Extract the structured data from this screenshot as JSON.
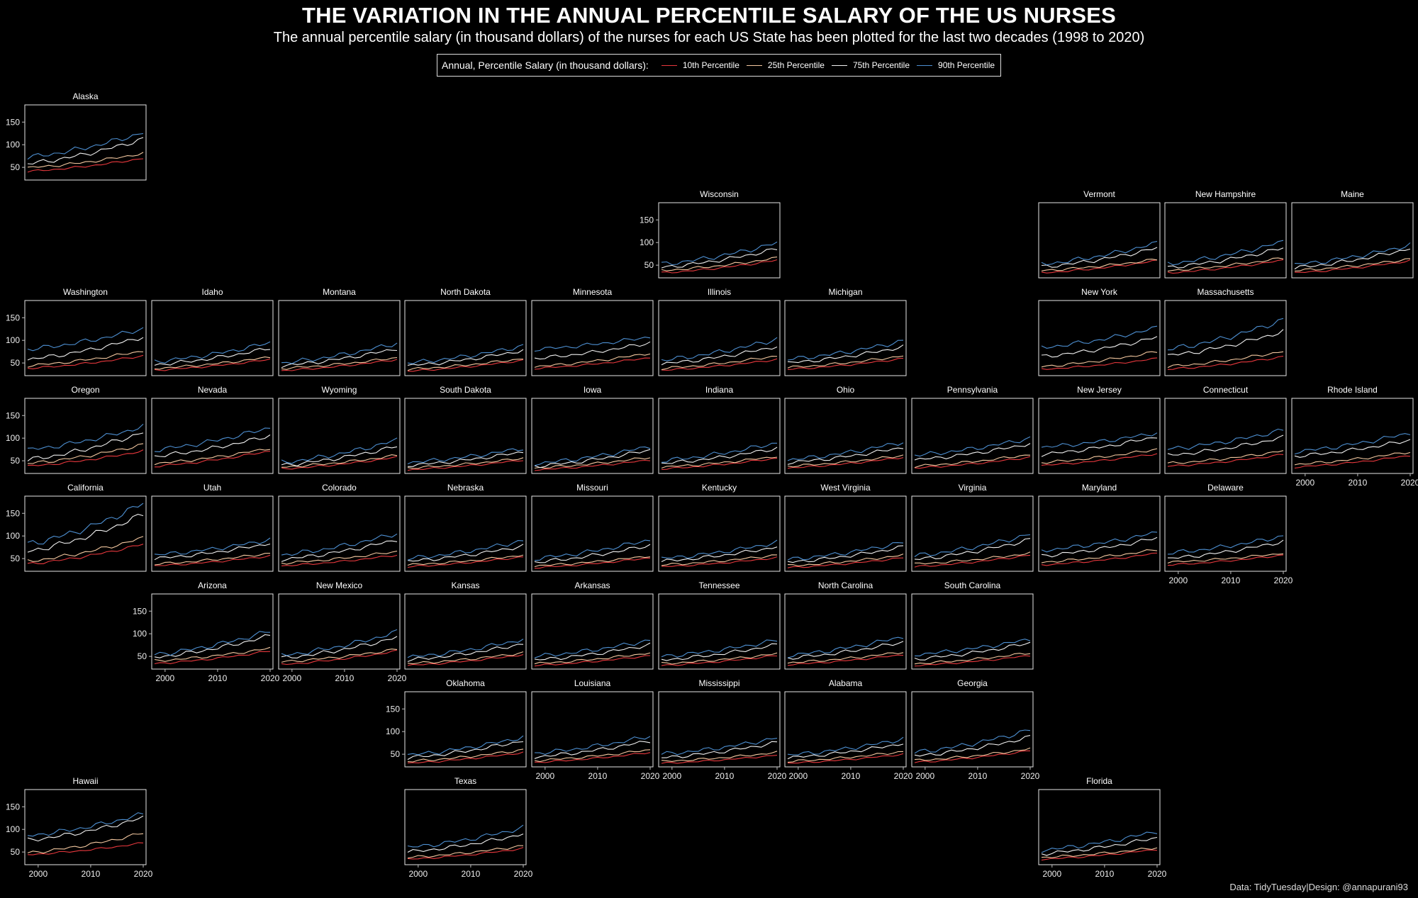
{
  "title": "THE VARIATION IN THE ANNUAL PERCENTILE SALARY OF THE US NURSES",
  "subtitle": "The annual percentile salary (in thousand dollars) of the nurses for each US State has been plotted for the last two decades (1998 to 2020)",
  "caption": "Data: TidyTuesday|Design: @annapurani93",
  "legend_title": "Annual, Percentile Salary (in thousand dollars):",
  "colors": {
    "background": "#000000",
    "p10": "#e8383d",
    "p25": "#f4c8a0",
    "p75": "#f0f0f0",
    "p90": "#4d8fd1"
  },
  "chart_data": {
    "type": "line",
    "x_range": [
      1998,
      2020
    ],
    "ylim": [
      22,
      188
    ],
    "x_ticks": [
      2000,
      2010,
      2020
    ],
    "y_ticks": [
      50,
      100,
      150
    ],
    "legend_placement": "top-center",
    "grid": false,
    "series_names": [
      "10th Percentile",
      "25th Percentile",
      "75th Percentile",
      "90th Percentile"
    ],
    "states": [
      {
        "name": "Alaska",
        "row": 0,
        "col": 0,
        "start": [
          41,
          49,
          58,
          72
        ],
        "end": [
          70,
          81,
          113,
          127
        ]
      },
      {
        "name": "Wisconsin",
        "row": 1,
        "col": 5,
        "start": [
          33,
          38,
          45,
          52
        ],
        "end": [
          61,
          66,
          86,
          99
        ]
      },
      {
        "name": "Vermont",
        "row": 1,
        "col": 8,
        "start": [
          33,
          38,
          46,
          52
        ],
        "end": [
          60,
          63,
          88,
          99
        ]
      },
      {
        "name": "New Hampshire",
        "row": 1,
        "col": 9,
        "start": [
          33,
          38,
          45,
          53
        ],
        "end": [
          61,
          66,
          88,
          102
        ]
      },
      {
        "name": "Maine",
        "row": 1,
        "col": 10,
        "start": [
          33,
          38,
          44,
          51
        ],
        "end": [
          60,
          64,
          87,
          95
        ]
      },
      {
        "name": "Washington",
        "row": 2,
        "col": 0,
        "start": [
          38,
          44,
          58,
          80
        ],
        "end": [
          66,
          77,
          108,
          126
        ]
      },
      {
        "name": "Idaho",
        "row": 2,
        "col": 1,
        "start": [
          34,
          38,
          46,
          53
        ],
        "end": [
          58,
          63,
          83,
          95
        ]
      },
      {
        "name": "Montana",
        "row": 2,
        "col": 2,
        "start": [
          33,
          38,
          44,
          50
        ],
        "end": [
          58,
          62,
          82,
          94
        ]
      },
      {
        "name": "North Dakota",
        "row": 2,
        "col": 3,
        "start": [
          32,
          36,
          44,
          50
        ],
        "end": [
          56,
          60,
          78,
          88
        ]
      },
      {
        "name": "Minnesota",
        "row": 2,
        "col": 4,
        "start": [
          38,
          42,
          60,
          80
        ],
        "end": [
          62,
          72,
          95,
          108
        ]
      },
      {
        "name": "Illinois",
        "row": 2,
        "col": 5,
        "start": [
          34,
          38,
          48,
          56
        ],
        "end": [
          58,
          66,
          87,
          103
        ]
      },
      {
        "name": "Michigan",
        "row": 2,
        "col": 6,
        "start": [
          36,
          40,
          50,
          58
        ],
        "end": [
          60,
          66,
          86,
          99
        ]
      },
      {
        "name": "New York",
        "row": 2,
        "col": 8,
        "start": [
          36,
          42,
          64,
          84
        ],
        "end": [
          60,
          75,
          107,
          128
        ]
      },
      {
        "name": "Massachusetts",
        "row": 2,
        "col": 9,
        "start": [
          36,
          42,
          66,
          80
        ],
        "end": [
          64,
          76,
          120,
          146
        ]
      },
      {
        "name": "Oregon",
        "row": 3,
        "col": 0,
        "start": [
          38,
          44,
          52,
          74
        ],
        "end": [
          72,
          86,
          113,
          126
        ]
      },
      {
        "name": "Nevada",
        "row": 3,
        "col": 1,
        "start": [
          38,
          44,
          60,
          74
        ],
        "end": [
          72,
          78,
          106,
          124
        ]
      },
      {
        "name": "Wyoming",
        "row": 3,
        "col": 2,
        "start": [
          32,
          36,
          40,
          46
        ],
        "end": [
          58,
          62,
          82,
          96
        ]
      },
      {
        "name": "South Dakota",
        "row": 3,
        "col": 3,
        "start": [
          30,
          34,
          40,
          46
        ],
        "end": [
          52,
          56,
          70,
          78
        ]
      },
      {
        "name": "Iowa",
        "row": 3,
        "col": 4,
        "start": [
          30,
          34,
          38,
          44
        ],
        "end": [
          52,
          58,
          74,
          82
        ]
      },
      {
        "name": "Indiana",
        "row": 3,
        "col": 5,
        "start": [
          32,
          36,
          44,
          50
        ],
        "end": [
          56,
          60,
          78,
          90
        ]
      },
      {
        "name": "Ohio",
        "row": 3,
        "col": 6,
        "start": [
          34,
          38,
          46,
          52
        ],
        "end": [
          58,
          62,
          80,
          92
        ]
      },
      {
        "name": "Pennsylvania",
        "row": 3,
        "col": 7,
        "start": [
          34,
          38,
          52,
          62
        ],
        "end": [
          58,
          64,
          88,
          100
        ]
      },
      {
        "name": "New Jersey",
        "row": 3,
        "col": 8,
        "start": [
          40,
          46,
          64,
          80
        ],
        "end": [
          66,
          76,
          104,
          112
        ]
      },
      {
        "name": "Connecticut",
        "row": 3,
        "col": 9,
        "start": [
          38,
          44,
          62,
          76
        ],
        "end": [
          64,
          72,
          102,
          118
        ]
      },
      {
        "name": "Rhode Island",
        "row": 3,
        "col": 10,
        "start": [
          36,
          42,
          60,
          70
        ],
        "end": [
          62,
          70,
          96,
          112
        ]
      },
      {
        "name": "California",
        "row": 4,
        "col": 0,
        "start": [
          38,
          44,
          66,
          82
        ],
        "end": [
          82,
          96,
          148,
          172
        ]
      },
      {
        "name": "Utah",
        "row": 4,
        "col": 1,
        "start": [
          34,
          38,
          50,
          58
        ],
        "end": [
          56,
          62,
          84,
          92
        ]
      },
      {
        "name": "Colorado",
        "row": 4,
        "col": 2,
        "start": [
          34,
          40,
          48,
          58
        ],
        "end": [
          58,
          66,
          92,
          106
        ]
      },
      {
        "name": "Nebraska",
        "row": 4,
        "col": 3,
        "start": [
          32,
          36,
          44,
          50
        ],
        "end": [
          54,
          58,
          78,
          90
        ]
      },
      {
        "name": "Missouri",
        "row": 4,
        "col": 4,
        "start": [
          30,
          34,
          42,
          50
        ],
        "end": [
          52,
          56,
          80,
          92
        ]
      },
      {
        "name": "Kentucky",
        "row": 4,
        "col": 5,
        "start": [
          32,
          36,
          44,
          50
        ],
        "end": [
          52,
          58,
          76,
          86
        ]
      },
      {
        "name": "West Virginia",
        "row": 4,
        "col": 6,
        "start": [
          30,
          34,
          42,
          48
        ],
        "end": [
          52,
          58,
          76,
          86
        ]
      },
      {
        "name": "Virginia",
        "row": 4,
        "col": 7,
        "start": [
          32,
          38,
          48,
          56
        ],
        "end": [
          58,
          62,
          92,
          104
        ]
      },
      {
        "name": "Maryland",
        "row": 4,
        "col": 8,
        "start": [
          36,
          42,
          56,
          68
        ],
        "end": [
          62,
          70,
          96,
          108
        ]
      },
      {
        "name": "Delaware",
        "row": 4,
        "col": 9,
        "start": [
          36,
          42,
          50,
          62
        ],
        "end": [
          58,
          62,
          88,
          100
        ]
      },
      {
        "name": "Arizona",
        "row": 5,
        "col": 1,
        "start": [
          34,
          40,
          48,
          54
        ],
        "end": [
          62,
          68,
          96,
          106
        ]
      },
      {
        "name": "New Mexico",
        "row": 5,
        "col": 2,
        "start": [
          32,
          38,
          46,
          52
        ],
        "end": [
          62,
          66,
          92,
          104
        ]
      },
      {
        "name": "Kansas",
        "row": 5,
        "col": 3,
        "start": [
          30,
          34,
          42,
          48
        ],
        "end": [
          54,
          58,
          78,
          88
        ]
      },
      {
        "name": "Arkansas",
        "row": 5,
        "col": 4,
        "start": [
          30,
          34,
          42,
          50
        ],
        "end": [
          52,
          58,
          76,
          86
        ]
      },
      {
        "name": "Tennessee",
        "row": 5,
        "col": 5,
        "start": [
          30,
          34,
          42,
          50
        ],
        "end": [
          52,
          56,
          76,
          86
        ]
      },
      {
        "name": "North Carolina",
        "row": 5,
        "col": 6,
        "start": [
          32,
          36,
          46,
          52
        ],
        "end": [
          54,
          60,
          82,
          94
        ]
      },
      {
        "name": "South Carolina",
        "row": 5,
        "col": 7,
        "start": [
          30,
          34,
          44,
          54
        ],
        "end": [
          52,
          58,
          80,
          88
        ]
      },
      {
        "name": "Oklahoma",
        "row": 6,
        "col": 3,
        "start": [
          30,
          34,
          42,
          48
        ],
        "end": [
          54,
          60,
          80,
          88
        ]
      },
      {
        "name": "Louisiana",
        "row": 6,
        "col": 4,
        "start": [
          32,
          36,
          44,
          52
        ],
        "end": [
          54,
          60,
          80,
          90
        ]
      },
      {
        "name": "Mississippi",
        "row": 6,
        "col": 5,
        "start": [
          30,
          34,
          42,
          50
        ],
        "end": [
          48,
          54,
          76,
          86
        ]
      },
      {
        "name": "Alabama",
        "row": 6,
        "col": 6,
        "start": [
          30,
          34,
          42,
          48
        ],
        "end": [
          50,
          56,
          74,
          84
        ]
      },
      {
        "name": "Georgia",
        "row": 6,
        "col": 7,
        "start": [
          32,
          36,
          46,
          54
        ],
        "end": [
          58,
          62,
          88,
          104
        ]
      },
      {
        "name": "Hawaii",
        "row": 7,
        "col": 0,
        "start": [
          44,
          48,
          76,
          86
        ],
        "end": [
          70,
          92,
          126,
          134
        ]
      },
      {
        "name": "Texas",
        "row": 7,
        "col": 3,
        "start": [
          34,
          38,
          50,
          60
        ],
        "end": [
          58,
          64,
          90,
          104
        ]
      },
      {
        "name": "Florida",
        "row": 7,
        "col": 8,
        "start": [
          34,
          38,
          46,
          54
        ],
        "end": [
          56,
          60,
          82,
          96
        ]
      }
    ]
  }
}
